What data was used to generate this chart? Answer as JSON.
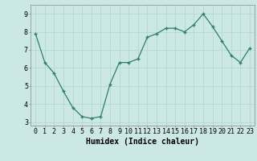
{
  "x": [
    0,
    1,
    2,
    3,
    4,
    5,
    6,
    7,
    8,
    9,
    10,
    11,
    12,
    13,
    14,
    15,
    16,
    17,
    18,
    19,
    20,
    21,
    22,
    23
  ],
  "y": [
    7.9,
    6.3,
    5.7,
    4.7,
    3.8,
    3.3,
    3.2,
    3.3,
    5.1,
    6.3,
    6.3,
    6.5,
    7.7,
    7.9,
    8.2,
    8.2,
    8.0,
    8.4,
    9.0,
    8.3,
    7.5,
    6.7,
    6.3,
    7.1
  ],
  "xlabel": "Humidex (Indice chaleur)",
  "line_color": "#2e7d6e",
  "marker_color": "#2e7d6e",
  "bg_color": "#cce8e5",
  "grid_color": "#b0d4d0",
  "axis_bg": "#cce8e5",
  "ylim": [
    2.8,
    9.5
  ],
  "xlim": [
    -0.5,
    23.5
  ],
  "yticks": [
    3,
    4,
    5,
    6,
    7,
    8,
    9
  ],
  "xticks": [
    0,
    1,
    2,
    3,
    4,
    5,
    6,
    7,
    8,
    9,
    10,
    11,
    12,
    13,
    14,
    15,
    16,
    17,
    18,
    19,
    20,
    21,
    22,
    23
  ],
  "xlabel_fontsize": 7,
  "tick_fontsize": 6
}
